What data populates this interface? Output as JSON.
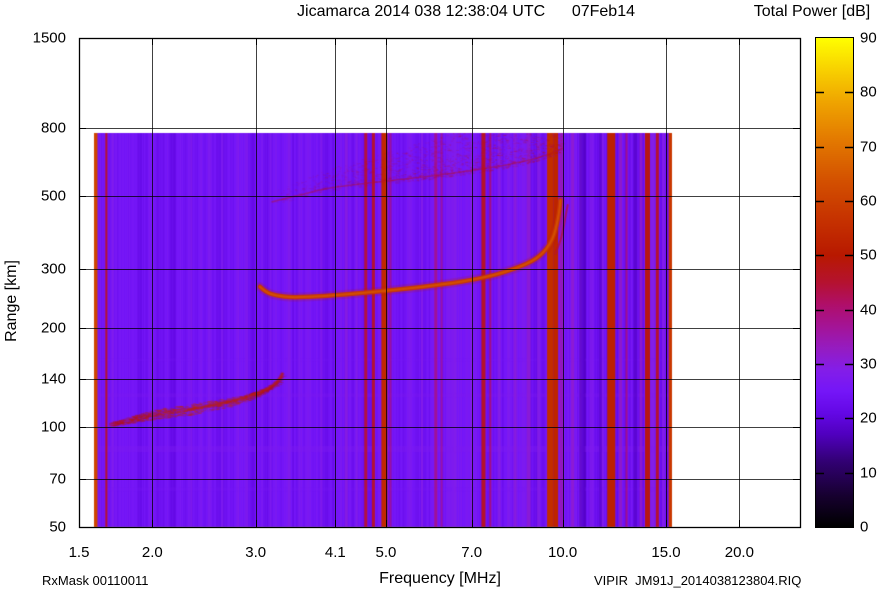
{
  "header": {
    "title": "Jicamarca 2014 038 12:38:04 UTC      07Feb14",
    "colorbar_title": "Total Power [dB]"
  },
  "footer": {
    "rxmask": "RxMask 00110011",
    "xlabel": "Frequency [MHz]",
    "filename": "VIPIR  JM91J_2014038123804.RIQ"
  },
  "axes": {
    "ylabel": "Range [km]",
    "x_scale": "log",
    "y_scale": "log",
    "x_ticks": [
      {
        "label": "1.5",
        "value": 1.5
      },
      {
        "label": "2.0",
        "value": 2.0
      },
      {
        "label": "3.0",
        "value": 3.0
      },
      {
        "label": "4.1",
        "value": 4.1
      },
      {
        "label": "5.0",
        "value": 5.0
      },
      {
        "label": "7.0",
        "value": 7.0
      },
      {
        "label": "10.0",
        "value": 10.0
      },
      {
        "label": "15.0",
        "value": 15.0
      },
      {
        "label": "20.0",
        "value": 20.0
      }
    ],
    "y_ticks": [
      {
        "label": "50",
        "value": 50
      },
      {
        "label": "70",
        "value": 70
      },
      {
        "label": "100",
        "value": 100
      },
      {
        "label": "140",
        "value": 140
      },
      {
        "label": "200",
        "value": 200
      },
      {
        "label": "300",
        "value": 300
      },
      {
        "label": "500",
        "value": 500
      },
      {
        "label": "800",
        "value": 800
      },
      {
        "label": "1500",
        "value": 1500
      }
    ],
    "colorbar_ticks": [
      {
        "label": "0",
        "value": 0
      },
      {
        "label": "10",
        "value": 10
      },
      {
        "label": "20",
        "value": 20
      },
      {
        "label": "30",
        "value": 30
      },
      {
        "label": "40",
        "value": 40
      },
      {
        "label": "50",
        "value": 50
      },
      {
        "label": "60",
        "value": 60
      },
      {
        "label": "70",
        "value": 70
      },
      {
        "label": "80",
        "value": 80
      },
      {
        "label": "90",
        "value": 90
      }
    ]
  },
  "chart_data": {
    "type": "heatmap",
    "title": "Jicamarca 2014 038 12:38:04 UTC      07Feb14",
    "xlabel": "Frequency [MHz]",
    "ylabel": "Range [km]",
    "colorbar_title": "Total Power [dB]",
    "x_range_mhz": [
      1.5,
      25.4
    ],
    "y_range_km": [
      50,
      1500
    ],
    "colorbar_range_db": [
      0,
      90
    ],
    "sweep_f_range_mhz": [
      1.59,
      15.35
    ],
    "sweep_r_max_km": 775,
    "background_db": 24.5,
    "noise_seed": 987654321,
    "colormap_stops": [
      [
        0,
        "#000000"
      ],
      [
        6,
        "#180032"
      ],
      [
        12,
        "#320073"
      ],
      [
        17,
        "#5000be"
      ],
      [
        21,
        "#6408e6"
      ],
      [
        25,
        "#7516f8"
      ],
      [
        29,
        "#841ee8"
      ],
      [
        33,
        "#961cc0"
      ],
      [
        37,
        "#a51496"
      ],
      [
        41,
        "#b00f69"
      ],
      [
        45,
        "#b51230"
      ],
      [
        50,
        "#b81900"
      ],
      [
        57,
        "#c73400"
      ],
      [
        64,
        "#d45200"
      ],
      [
        71,
        "#e37800"
      ],
      [
        78,
        "#efa300"
      ],
      [
        84,
        "#f8d000"
      ],
      [
        90,
        "#ffff00"
      ]
    ],
    "rfi_stripes": [
      {
        "f": 1.6,
        "w": 4,
        "dB": 61
      },
      {
        "f": 1.67,
        "w": 2,
        "dB": 45
      },
      {
        "f": 2.33,
        "w": 2,
        "dB": 28
      },
      {
        "f": 2.5,
        "w": 3,
        "dB": 27.5
      },
      {
        "f": 2.63,
        "w": 2,
        "dB": 27.5
      },
      {
        "f": 2.9,
        "w": 2,
        "dB": 28
      },
      {
        "f": 3.18,
        "w": 2,
        "dB": 27.5
      },
      {
        "f": 3.42,
        "w": 3,
        "dB": 28.5
      },
      {
        "f": 3.56,
        "w": 2,
        "dB": 27.5
      },
      {
        "f": 3.88,
        "w": 2,
        "dB": 28.5
      },
      {
        "f": 4.28,
        "w": 3,
        "dB": 30
      },
      {
        "f": 4.46,
        "w": 2,
        "dB": 29
      },
      {
        "f": 4.62,
        "w": 3,
        "dB": 44
      },
      {
        "f": 4.76,
        "w": 3,
        "dB": 45
      },
      {
        "f": 4.97,
        "w": 6,
        "dB": 54
      },
      {
        "f": 5.09,
        "w": 2,
        "dB": 38
      },
      {
        "f": 5.5,
        "w": 3,
        "dB": 27
      },
      {
        "f": 5.76,
        "w": 2,
        "dB": 29
      },
      {
        "f": 6.08,
        "w": 3,
        "dB": 39
      },
      {
        "f": 6.22,
        "w": 2,
        "dB": 37
      },
      {
        "f": 6.55,
        "w": 3,
        "dB": 28.5
      },
      {
        "f": 7.0,
        "w": 2,
        "dB": 30
      },
      {
        "f": 7.33,
        "w": 4,
        "dB": 46
      },
      {
        "f": 7.53,
        "w": 2,
        "dB": 41
      },
      {
        "f": 7.8,
        "w": 3,
        "dB": 29.5
      },
      {
        "f": 8.3,
        "w": 3,
        "dB": 30.5
      },
      {
        "f": 8.75,
        "w": 4,
        "dB": 31.5
      },
      {
        "f": 9.1,
        "w": 3,
        "dB": 29.5
      },
      {
        "f": 9.52,
        "w": 6,
        "dB": 55
      },
      {
        "f": 9.73,
        "w": 5,
        "dB": 53
      },
      {
        "f": 9.95,
        "w": 3,
        "dB": 35
      },
      {
        "f": 10.4,
        "w": 3,
        "dB": 32
      },
      {
        "f": 10.8,
        "w": 6,
        "dB": 17
      },
      {
        "f": 11.2,
        "w": 4,
        "dB": 28
      },
      {
        "f": 11.6,
        "w": 3,
        "dB": 18
      },
      {
        "f": 12.1,
        "w": 8,
        "dB": 52
      },
      {
        "f": 12.55,
        "w": 3,
        "dB": 33
      },
      {
        "f": 12.85,
        "w": 2,
        "dB": 40
      },
      {
        "f": 13.3,
        "w": 4,
        "dB": 18
      },
      {
        "f": 13.6,
        "w": 3,
        "dB": 32
      },
      {
        "f": 13.95,
        "w": 5,
        "dB": 48
      },
      {
        "f": 14.5,
        "w": 3,
        "dB": 45
      },
      {
        "f": 14.85,
        "w": 3,
        "dB": 29
      },
      {
        "f": 15.28,
        "w": 4,
        "dB": 58
      }
    ],
    "horizontal_bands": [
      {
        "r": 86,
        "h": 6,
        "dB": 27,
        "alpha": 0.45
      },
      {
        "r": 125,
        "h": 4,
        "dB": 27,
        "alpha": 0.3
      },
      {
        "r": 65,
        "h": 4,
        "dB": 26,
        "alpha": 0.25
      },
      {
        "r": 160,
        "h": 3,
        "dB": 26,
        "alpha": 0.2
      }
    ],
    "traces": {
      "e_layer": {
        "dB": 52,
        "points": [
          [
            1.7,
            102
          ],
          [
            1.85,
            106
          ],
          [
            2.05,
            110
          ],
          [
            2.3,
            113
          ],
          [
            2.55,
            117
          ],
          [
            2.8,
            121
          ],
          [
            3.0,
            126
          ],
          [
            3.15,
            131
          ],
          [
            3.27,
            137
          ],
          [
            3.33,
            145
          ]
        ]
      },
      "f_layer": {
        "dB": 58,
        "points": [
          [
            3.05,
            266
          ],
          [
            3.12,
            256
          ],
          [
            3.25,
            250
          ],
          [
            3.45,
            247
          ],
          [
            3.7,
            248
          ],
          [
            4.0,
            250
          ],
          [
            4.5,
            254
          ],
          [
            5.0,
            259
          ],
          [
            5.5,
            263
          ],
          [
            6.0,
            268
          ],
          [
            6.5,
            273
          ],
          [
            7.0,
            279
          ],
          [
            7.5,
            286
          ],
          [
            8.0,
            295
          ],
          [
            8.5,
            307
          ],
          [
            8.85,
            317
          ],
          [
            9.15,
            330
          ],
          [
            9.4,
            347
          ],
          [
            9.6,
            369
          ],
          [
            9.73,
            396
          ],
          [
            9.82,
            428
          ],
          [
            9.88,
            458
          ],
          [
            9.91,
            485
          ]
        ]
      },
      "f_layer_x_mode": {
        "dB": 45,
        "points": [
          [
            9.72,
            335
          ],
          [
            9.9,
            362
          ],
          [
            10.03,
            398
          ],
          [
            10.12,
            436
          ],
          [
            10.2,
            470
          ]
        ]
      },
      "spread_f": {
        "dB": 46,
        "points": [
          [
            3.2,
            480
          ],
          [
            3.6,
            505
          ],
          [
            4.0,
            530
          ],
          [
            5.0,
            555
          ],
          [
            6.0,
            575
          ],
          [
            7.0,
            597
          ],
          [
            8.0,
            620
          ],
          [
            8.8,
            643
          ],
          [
            9.4,
            665
          ],
          [
            9.8,
            685
          ],
          [
            10.0,
            698
          ]
        ]
      }
    }
  }
}
